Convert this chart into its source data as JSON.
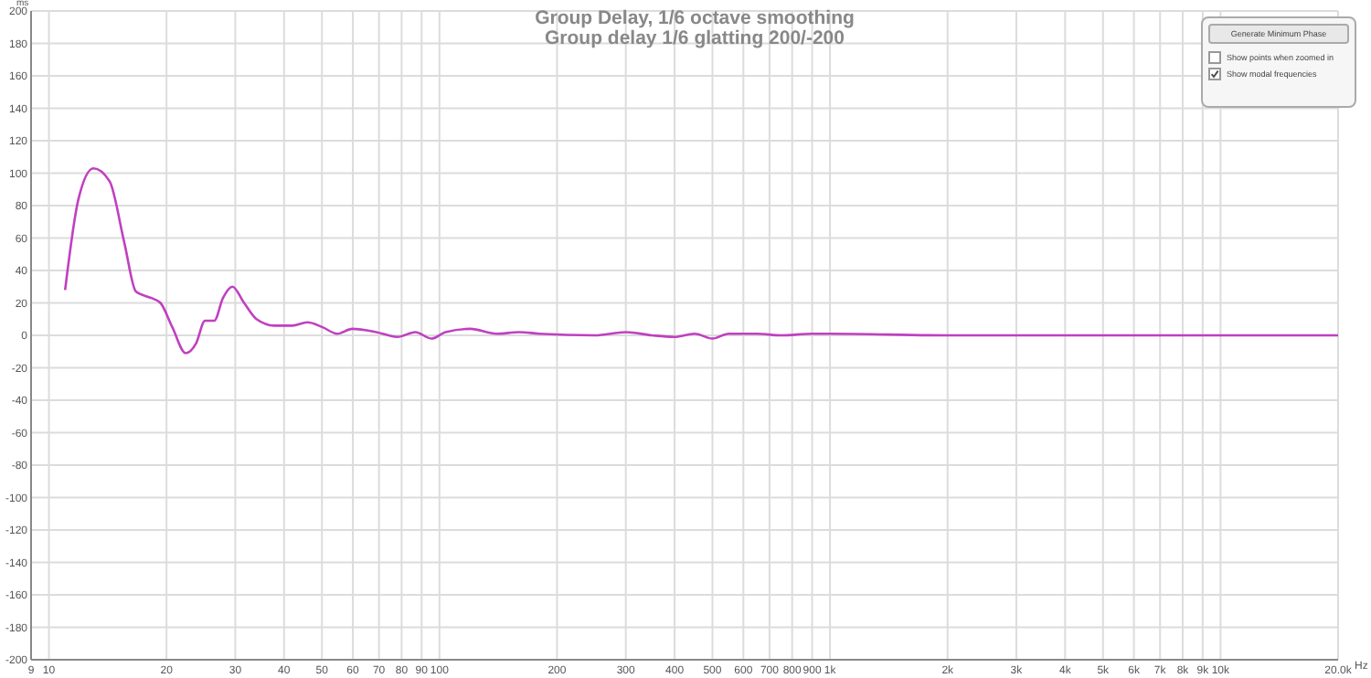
{
  "chart_data": {
    "type": "line",
    "title": "Group Delay, 1/6 octave smoothing",
    "subtitle": "Group delay 1/6 glatting 200/-200",
    "ylabel": "ms",
    "x": [
      11,
      11.9,
      13,
      14.3,
      15.6,
      16.7,
      18.3,
      19.3,
      20.7,
      22.4,
      23.8,
      25.1,
      26.5,
      27.9,
      29.5,
      31.6,
      34,
      37.8,
      42,
      45.9,
      50.2,
      54.7,
      59.8,
      68.9,
      78,
      86.7,
      95.5,
      103.6,
      120,
      140,
      160,
      180,
      250,
      300,
      350,
      400,
      450,
      500,
      550,
      650,
      750,
      900,
      1000,
      2000,
      3000,
      5000,
      10000,
      20000
    ],
    "series": [
      {
        "color": "#c040c0",
        "values": [
          28,
          84,
          103,
          95,
          57,
          27,
          23,
          20,
          5,
          -11,
          -5,
          9,
          9,
          23,
          30,
          20,
          10,
          6,
          6,
          8,
          5,
          1,
          4,
          2,
          -1,
          2,
          -2,
          2,
          4,
          1,
          2,
          1,
          0,
          2,
          0,
          -1,
          1,
          -2,
          1,
          1,
          0,
          1,
          1,
          0,
          0,
          0,
          0,
          0
        ]
      }
    ],
    "log": "x",
    "xlim": [
      9,
      20000
    ],
    "xticks": [
      {
        "value": 9,
        "label": "9"
      },
      10,
      20,
      30,
      40,
      50,
      60,
      70,
      80,
      90,
      100,
      200,
      300,
      400,
      500,
      600,
      700,
      800,
      900,
      {
        "value": 1000,
        "label": "1k"
      },
      {
        "value": 2000,
        "label": "2k"
      },
      {
        "value": 3000,
        "label": "3k"
      },
      {
        "value": 4000,
        "label": "4k"
      },
      {
        "value": 5000,
        "label": "5k"
      },
      {
        "value": 6000,
        "label": "6k"
      },
      {
        "value": 7000,
        "label": "7k"
      },
      {
        "value": 8000,
        "label": "8k"
      },
      {
        "value": 9000,
        "label": "9k"
      },
      {
        "value": 10000,
        "label": "10k"
      },
      {
        "value": 20000,
        "label": "20.0k"
      }
    ],
    "xlabel": "Hz",
    "ylim": [
      -200,
      200
    ],
    "yticks": [
      -200,
      -180,
      -160,
      -140,
      -120,
      -100,
      -80,
      -60,
      -40,
      -20,
      0,
      20,
      40,
      60,
      80,
      100,
      120,
      140,
      160,
      180,
      200
    ],
    "grid": true,
    "marker": "none",
    "line_style": "solid",
    "annotations": [
      "Generate Minimum Phase",
      "Show points when zoomed in",
      "Show modal frequencies"
    ]
  }
}
